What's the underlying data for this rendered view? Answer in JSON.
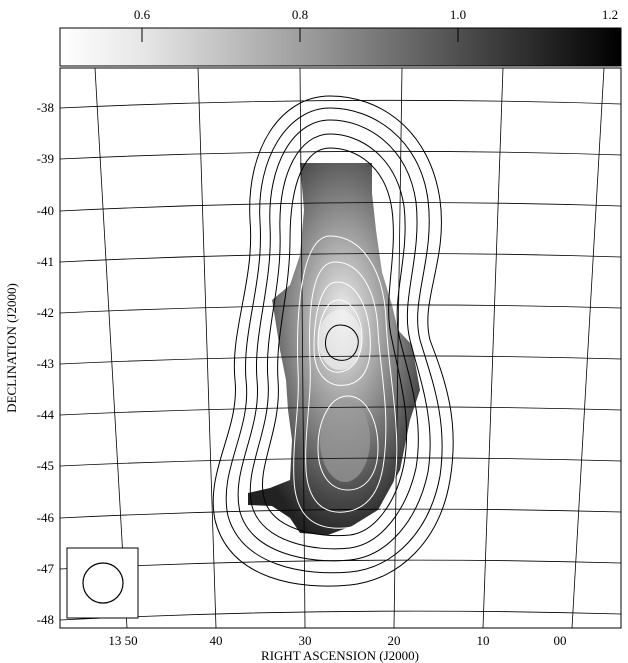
{
  "colorbar": {
    "ticks": [
      "0.6",
      "0.8",
      "1.0",
      "1.2"
    ],
    "values": [
      0.6,
      0.8,
      1.0,
      1.2
    ],
    "range": [
      0.5,
      1.2
    ],
    "colormap": "grayscale (light to dark)"
  },
  "axes": {
    "xlabel": "RIGHT ASCENSION (J2000)",
    "ylabel": "DECLINATION (J2000)",
    "ra_ticks": [
      "13 50",
      "40",
      "30",
      "20",
      "10",
      "00"
    ],
    "dec_ticks": [
      "-38",
      "-39",
      "-40",
      "-41",
      "-42",
      "-43",
      "-44",
      "-45",
      "-46",
      "-47",
      "-48"
    ]
  },
  "map": {
    "contours_outer_color": "#000000",
    "contours_inner_color": "#ffffff",
    "beam_marker": "circle in lower-left box"
  }
}
